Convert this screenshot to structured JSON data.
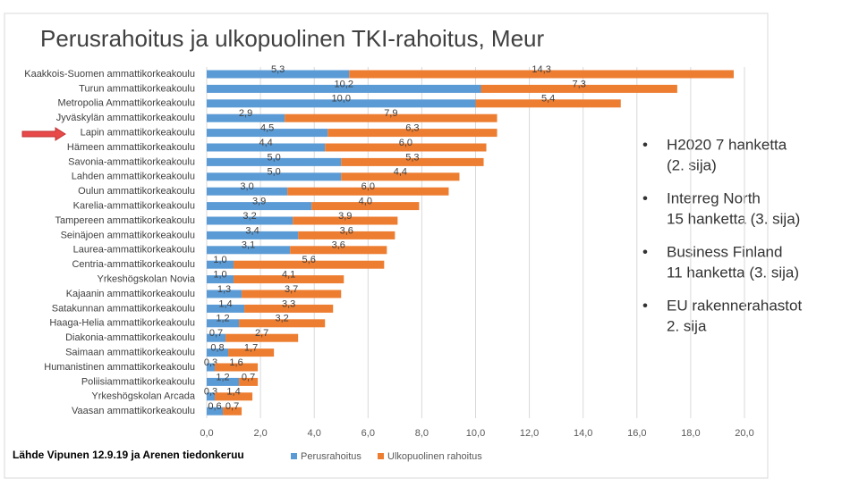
{
  "chart_data": {
    "type": "stacked-barh",
    "title": "Perusrahoitus ja ulkopuolinen TKI-rahoitus, Meur",
    "source": "Lähde Vipunen 12.9.19 ja Arenen tiedonkeruu",
    "categories": [
      "Kaakkois-Suomen ammattikorkeakoulu",
      "Turun ammattikorkeakoulu",
      "Metropolia Ammattikorkeakoulu",
      "Jyväskylän ammattikorkeakoulu",
      "Lapin ammattikorkeakoulu",
      "Hämeen ammattikorkeakoulu",
      "Savonia-ammattikorkeakoulu",
      "Lahden ammattikorkeakoulu",
      "Oulun ammattikorkeakoulu",
      "Karelia-ammattikorkeakoulu",
      "Tampereen ammattikorkeakoulu",
      "Seinäjoen ammattikorkeakoulu",
      "Laurea-ammattikorkeakoulu",
      "Centria-ammattikorkeakoulu",
      "Yrkeshögskolan Novia",
      "Kajaanin ammattikorkeakoulu",
      "Satakunnan ammattikorkeakoulu",
      "Haaga-Helia ammattikorkeakoulu",
      "Diakonia-ammattikorkeakoulu",
      "Saimaan ammattikorkeakoulu",
      "Humanistinen ammattikorkeakoulu",
      "Poliisiammattikorkeakoulu",
      "Yrkeshögskolan Arcada",
      "Vaasan ammattikorkeakoulu"
    ],
    "series": [
      {
        "name": "Perusrahoitus",
        "color": "#5b9bd5",
        "values": [
          5.3,
          10.2,
          10.0,
          2.9,
          4.5,
          4.4,
          5.0,
          5.0,
          3.0,
          3.9,
          3.2,
          3.4,
          3.1,
          1.0,
          1.0,
          1.3,
          1.4,
          1.2,
          0.7,
          0.8,
          0.3,
          1.2,
          0.3,
          0.6
        ],
        "value_labels": [
          "5,3",
          "10,2",
          "10,0",
          "2,9",
          "4,5",
          "4,4",
          "5,0",
          "5,0",
          "3,0",
          "3,9",
          "3,2",
          "3,4",
          "3,1",
          "1,0",
          "1,0",
          "1,3",
          "1,4",
          "1,2",
          "0,7",
          "0,8",
          "0,3",
          "1,2",
          "0,3",
          "0,6"
        ]
      },
      {
        "name": "Ulkopuolinen rahoitus",
        "color": "#ed7d31",
        "values": [
          14.3,
          7.3,
          5.4,
          7.9,
          6.3,
          6.0,
          5.3,
          4.4,
          6.0,
          4.0,
          3.9,
          3.6,
          3.6,
          5.6,
          4.1,
          3.7,
          3.3,
          3.2,
          2.7,
          1.7,
          1.6,
          0.7,
          1.4,
          0.7
        ],
        "value_labels": [
          "14,3",
          "7,3",
          "5,4",
          "7,9",
          "6,3",
          "6,0",
          "5,3",
          "4,4",
          "6,0",
          "4,0",
          "3,9",
          "3,6",
          "3,6",
          "5,6",
          "4,1",
          "3,7",
          "3,3",
          "3,2",
          "2,7",
          "1,7",
          "1,6",
          "0,7",
          "1,4",
          "0,7"
        ]
      }
    ],
    "xlim": [
      0,
      20
    ],
    "xticks": [
      {
        "value": 0,
        "label": "0,0"
      },
      {
        "value": 2,
        "label": "2,0"
      },
      {
        "value": 4,
        "label": "4,0"
      },
      {
        "value": 6,
        "label": "6,0"
      },
      {
        "value": 8,
        "label": "8,0"
      },
      {
        "value": 10,
        "label": "10,0"
      },
      {
        "value": 12,
        "label": "12,0"
      },
      {
        "value": 14,
        "label": "14,0"
      },
      {
        "value": 16,
        "label": "16,0"
      },
      {
        "value": 18,
        "label": "18,0"
      },
      {
        "value": 20,
        "label": "20,0"
      }
    ],
    "grid": true
  },
  "bullets": [
    [
      "H2020 7 hanketta",
      "(2. sija)"
    ],
    [
      "Interreg North",
      "15 hanketta (3. sija)"
    ],
    [
      "Business Finland",
      "11 hanketta (3. sija)"
    ],
    [
      "EU rakennerahastot",
      "2. sija"
    ]
  ]
}
